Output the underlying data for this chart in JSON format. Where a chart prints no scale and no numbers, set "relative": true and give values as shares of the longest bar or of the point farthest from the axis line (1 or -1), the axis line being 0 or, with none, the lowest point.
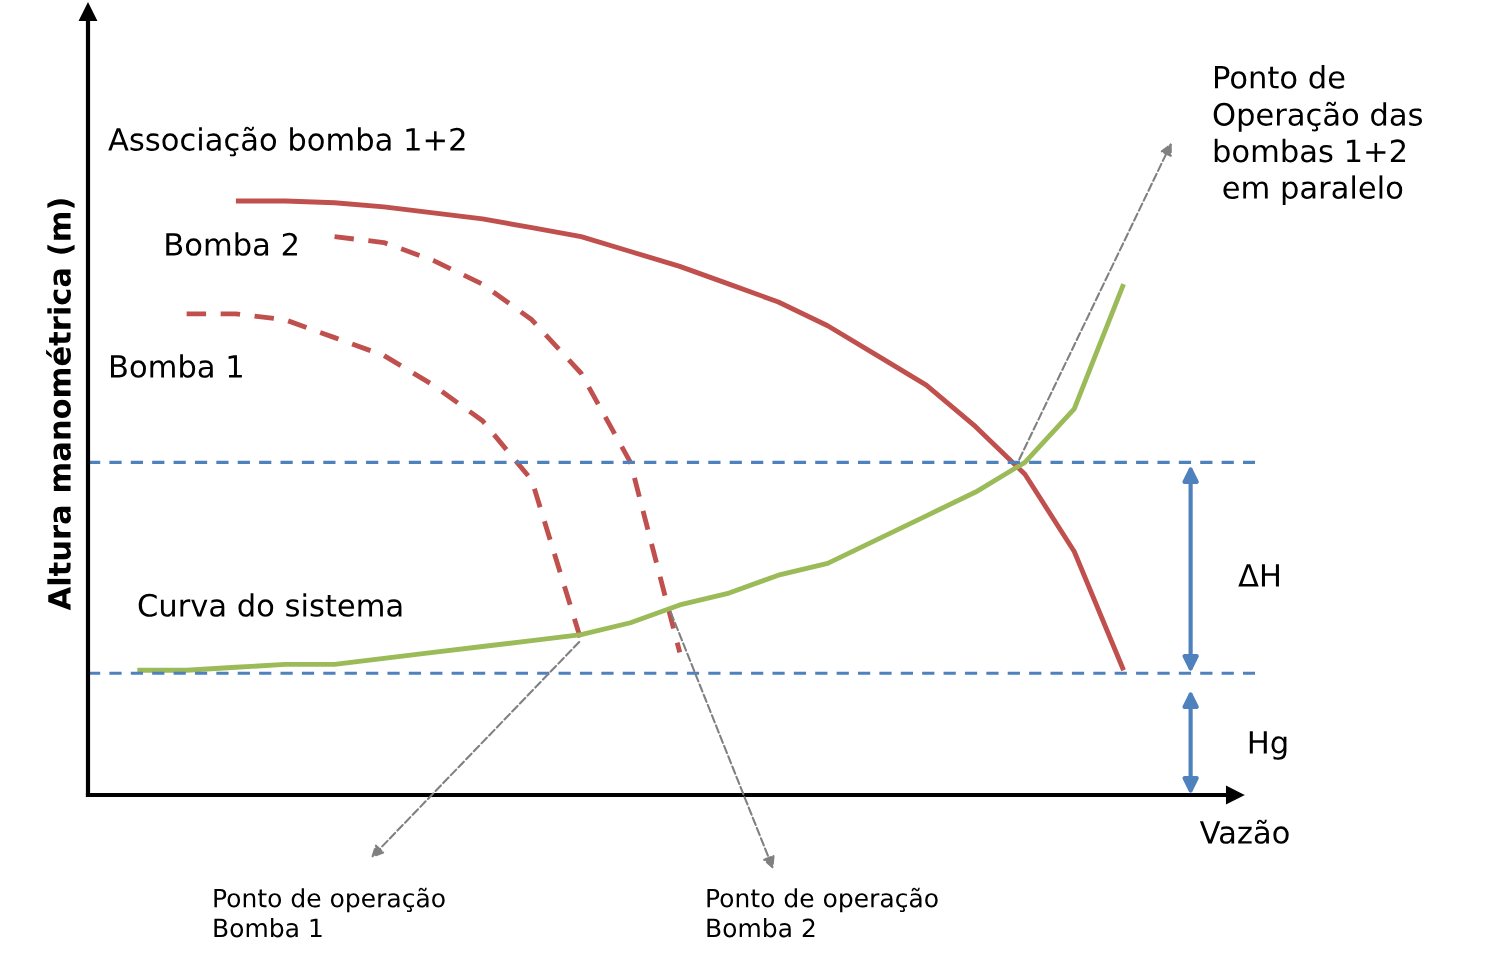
{
  "chart_data": {
    "type": "line",
    "relative": true,
    "xlabel": "Vazão",
    "ylabel": "Altura manométrica (m)",
    "categories": [
      null,
      null,
      null,
      null,
      null,
      null,
      null,
      null,
      null,
      null,
      null,
      null,
      null,
      null,
      null,
      null,
      null,
      null,
      null,
      null,
      null,
      null,
      null,
      null
    ],
    "series": [
      {
        "name": "Associação bomba 1+2",
        "color": "#c0504d",
        "line_style": "solid",
        "values": [
          null,
          null,
          null,
          1.0,
          1.0,
          0.997,
          0.99,
          0.98,
          0.97,
          0.955,
          0.94,
          0.915,
          0.89,
          0.86,
          0.83,
          0.79,
          0.74,
          0.69,
          0.62,
          0.54,
          0.41,
          0.21,
          null,
          null
        ]
      },
      {
        "name": "Bomba 2",
        "color": "#c0504d",
        "line_style": "dashed",
        "values": [
          null,
          null,
          null,
          null,
          null,
          0.94,
          0.93,
          0.9,
          0.86,
          0.8,
          0.71,
          0.56,
          0.24,
          null,
          null,
          null,
          null,
          null,
          null,
          null,
          null,
          null,
          null,
          null
        ]
      },
      {
        "name": "Bomba 1",
        "color": "#c0504d",
        "line_style": "dashed",
        "values": [
          null,
          null,
          0.81,
          0.81,
          0.8,
          0.77,
          0.74,
          0.69,
          0.63,
          0.53,
          0.26,
          null,
          null,
          null,
          null,
          null,
          null,
          null,
          null,
          null,
          null,
          null,
          null,
          null
        ]
      },
      {
        "name": "Curva do sistema",
        "color": "#9bbb59",
        "line_style": "solid",
        "values": [
          null,
          0.21,
          0.21,
          0.215,
          0.22,
          0.22,
          0.23,
          0.24,
          0.25,
          0.26,
          0.27,
          0.29,
          0.32,
          0.34,
          0.37,
          0.39,
          0.43,
          0.47,
          0.51,
          0.56,
          0.65,
          0.86,
          null,
          null
        ]
      }
    ],
    "ref_lines": [
      {
        "axis": "y",
        "value": 0.56,
        "color": "#4f81bd",
        "line_style": "dashed"
      },
      {
        "axis": "y",
        "value": 0.205,
        "color": "#4f81bd",
        "line_style": "dashed"
      }
    ],
    "annotations": [
      "Ponto de\nOperação das\nbombas 1+2\n em paralelo",
      "Ponto de operação\nBomba 1",
      "Ponto de operação\nBomba 2",
      "ΔH",
      "Hg"
    ]
  }
}
